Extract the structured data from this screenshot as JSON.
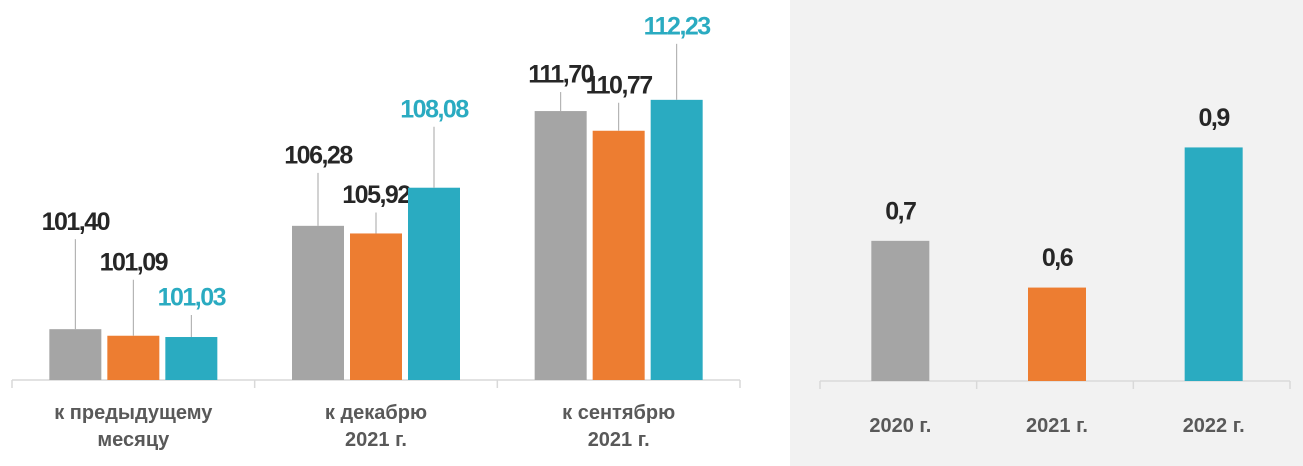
{
  "chart_data": [
    {
      "type": "bar",
      "categories": [
        "к предыдущему\nмесяцу",
        "к декабрю\n2021 г.",
        "к сентябрю\n2021 г."
      ],
      "series": [
        {
          "color": "#a5a5a5",
          "values": [
            101.4,
            106.28,
            111.7
          ],
          "value_labels": [
            "101,40",
            "106,28",
            "111,70"
          ]
        },
        {
          "color": "#ed7d31",
          "values": [
            101.09,
            105.92,
            110.77
          ],
          "value_labels": [
            "101,09",
            "105,92",
            "110,77"
          ]
        },
        {
          "color": "#2aabc1",
          "values": [
            101.03,
            108.08,
            112.23
          ],
          "value_labels": [
            "101,03",
            "108,08",
            "112,23"
          ]
        }
      ],
      "ylim": [
        99,
        116
      ]
    },
    {
      "type": "bar",
      "categories": [
        "2020 г.",
        "2021 г.",
        "2022 г."
      ],
      "values": [
        0.7,
        0.6,
        0.9
      ],
      "value_labels": [
        "0,7",
        "0,6",
        "0,9"
      ],
      "colors": [
        "#a5a5a5",
        "#ed7d31",
        "#2aabc1"
      ],
      "ylim": [
        0.4,
        1.1
      ]
    }
  ]
}
